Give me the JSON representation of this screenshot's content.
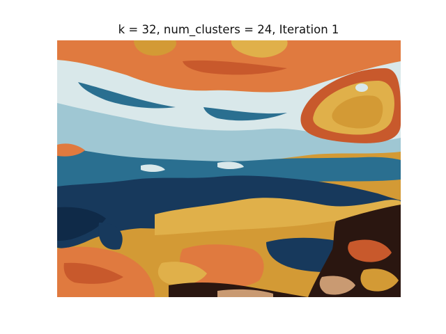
{
  "figure": {
    "title": "k = 32, num_clusters = 24, Iteration 1"
  },
  "image": {
    "description_kind": "quantized marbled fluid-art photograph",
    "palette": {
      "orange": "#e07a3f",
      "burnt_orange": "#c8592c",
      "mustard": "#d39a35",
      "gold": "#e0b04a",
      "navy": "#17395c",
      "deep_navy": "#0f2a48",
      "teal": "#2a6f90",
      "light_blue": "#9fc7d3",
      "ice": "#d9e8ea",
      "dark_brown": "#2a1610",
      "tan": "#c99a72"
    }
  }
}
